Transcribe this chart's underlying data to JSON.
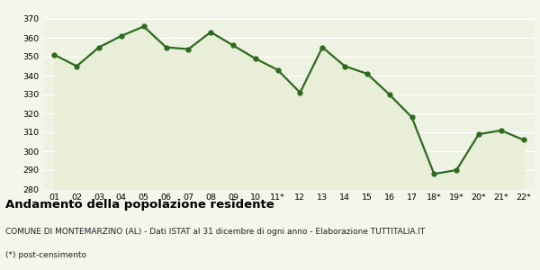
{
  "x_labels": [
    "01",
    "02",
    "03",
    "04",
    "05",
    "06",
    "07",
    "08",
    "09",
    "10",
    "11*",
    "12",
    "13",
    "14",
    "15",
    "16",
    "17",
    "18*",
    "19*",
    "20*",
    "21*",
    "22*"
  ],
  "y_values": [
    351,
    345,
    355,
    361,
    366,
    355,
    354,
    363,
    356,
    349,
    343,
    331,
    355,
    345,
    341,
    330,
    318,
    288,
    290,
    309,
    311,
    306
  ],
  "line_color": "#2d6a1f",
  "fill_color": "#e8eed8",
  "marker": "o",
  "marker_size": 3.5,
  "linewidth": 1.6,
  "ylim": [
    280,
    370
  ],
  "yticks": [
    280,
    290,
    300,
    310,
    320,
    330,
    340,
    350,
    360,
    370
  ],
  "title": "Andamento della popolazione residente",
  "subtitle": "COMUNE DI MONTEMARZINO (AL) - Dati ISTAT al 31 dicembre di ogni anno - Elaborazione TUTTITALIA.IT",
  "footnote": "(*) post-censimento",
  "title_fontsize": 9.5,
  "subtitle_fontsize": 6.5,
  "footnote_fontsize": 6.5,
  "tick_fontsize": 6.8,
  "bg_color": "#f5f5ec",
  "plot_bg_color": "#eef2e2"
}
